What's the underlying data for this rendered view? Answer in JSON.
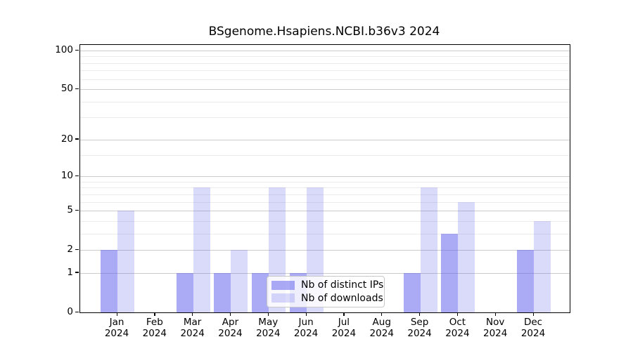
{
  "title": "BSgenome.Hsapiens.NCBI.b36v3 2024",
  "chart_data": {
    "type": "bar",
    "categories": [
      "Jan",
      "Feb",
      "Mar",
      "Apr",
      "May",
      "Jun",
      "Jul",
      "Aug",
      "Sep",
      "Oct",
      "Nov",
      "Dec"
    ],
    "x_year_label": "2024",
    "series": [
      {
        "name": "Nb of distinct IPs",
        "color": "rgba(88,88,235,0.5)",
        "values": [
          2,
          0,
          1,
          1,
          1,
          1,
          0,
          0,
          1,
          3,
          0,
          2
        ]
      },
      {
        "name": "Nb of downloads",
        "color": "rgba(88,88,235,0.22)",
        "values": [
          5,
          0,
          8,
          2,
          8,
          8,
          0,
          0,
          8,
          6,
          0,
          4
        ]
      }
    ],
    "yscale": "log1p",
    "ylim": [
      0,
      112
    ],
    "yticks": [
      0,
      1,
      2,
      5,
      10,
      20,
      50,
      100
    ],
    "ytick_labels": [
      "0",
      "1",
      "2",
      "5",
      "10",
      "20",
      "50",
      "100"
    ],
    "minor_yticks": [
      3,
      4,
      6,
      7,
      8,
      9,
      15,
      30,
      40,
      60,
      70,
      80,
      90
    ],
    "grid": "horizontal",
    "legend_position": "bottom-center"
  },
  "colors": {
    "background": "#ffffff",
    "grid_major": "#cccccc",
    "grid_minor": "#ececec",
    "spine": "#000000",
    "text": "#000000",
    "legend_border": "#c8c8c8"
  }
}
